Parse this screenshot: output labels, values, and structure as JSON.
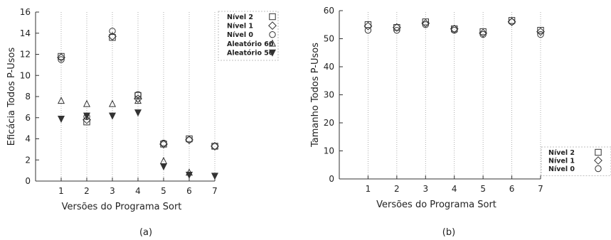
{
  "chart_data": [
    {
      "type": "scatter",
      "panel": "(a)",
      "xlabel": "Versões do Programa Sort",
      "ylabel": "Eficácia Todos P-Usos",
      "xlim": [
        0,
        7
      ],
      "ylim": [
        0,
        16
      ],
      "xticks": [
        1,
        2,
        3,
        4,
        5,
        6,
        7
      ],
      "yticks": [
        0,
        2,
        4,
        6,
        8,
        10,
        12,
        14,
        16
      ],
      "grid": "vertical dotted lines at each x tick",
      "legend_position": "top-right",
      "series": [
        {
          "name": "Nível 2",
          "marker": "square",
          "x": [
            1,
            2,
            3,
            4,
            5,
            6,
            7
          ],
          "y": [
            11.8,
            5.6,
            13.6,
            8.1,
            3.5,
            4.0,
            3.3
          ]
        },
        {
          "name": "Nível 1",
          "marker": "diamond",
          "x": [
            1,
            2,
            3,
            4,
            5,
            6,
            7
          ],
          "y": [
            11.7,
            5.8,
            13.7,
            7.8,
            3.5,
            3.9,
            3.3
          ]
        },
        {
          "name": "Nível 0",
          "marker": "circle",
          "x": [
            1,
            2,
            3,
            4,
            5,
            6,
            7
          ],
          "y": [
            11.5,
            6.1,
            14.2,
            8.2,
            3.6,
            3.9,
            3.3
          ]
        },
        {
          "name": "Aleatório 60",
          "marker": "triangle",
          "x": [
            1,
            2,
            3,
            4,
            5,
            6
          ],
          "y": [
            7.6,
            7.3,
            7.3,
            7.6,
            1.9,
            0.8
          ]
        },
        {
          "name": "Aleatório 50",
          "marker": "filled-triangle-down",
          "x": [
            1,
            2,
            3,
            4,
            5,
            6,
            7
          ],
          "y": [
            5.9,
            6.2,
            6.2,
            6.5,
            1.4,
            0.6,
            0.5
          ]
        }
      ]
    },
    {
      "type": "scatter",
      "panel": "(b)",
      "xlabel": "Versões do Programa Sort",
      "ylabel": "Tamanho Todos P-Usos",
      "xlim": [
        0,
        7
      ],
      "ylim": [
        0,
        60
      ],
      "xticks": [
        1,
        2,
        3,
        4,
        5,
        6,
        7
      ],
      "yticks": [
        0,
        10,
        20,
        30,
        40,
        50,
        60
      ],
      "grid": "vertical dotted lines at each x tick",
      "legend_position": "bottom-right",
      "series": [
        {
          "name": "Nível 2",
          "marker": "square",
          "x": [
            1,
            2,
            3,
            4,
            5,
            6,
            7
          ],
          "y": [
            55,
            54,
            56,
            53.5,
            52.5,
            56.5,
            53
          ]
        },
        {
          "name": "Nível 1",
          "marker": "diamond",
          "x": [
            1,
            2,
            3,
            4,
            5,
            6,
            7
          ],
          "y": [
            54.5,
            54,
            55.5,
            53.5,
            52,
            56,
            52.5
          ]
        },
        {
          "name": "Nível 0",
          "marker": "circle",
          "x": [
            1,
            2,
            3,
            4,
            5,
            6,
            7
          ],
          "y": [
            53,
            53,
            55,
            53,
            51.5,
            56,
            51.5
          ]
        }
      ]
    }
  ],
  "captions": [
    "(a)",
    "(b)"
  ]
}
